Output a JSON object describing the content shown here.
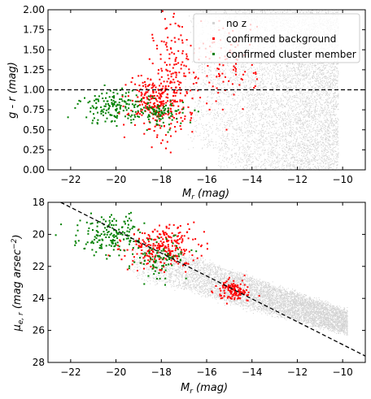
{
  "chart_data": [
    {
      "type": "scatter",
      "xlabel": "M_r (mag)",
      "ylabel": "g - r (mag)",
      "xlim": [
        -23,
        -9
      ],
      "ylim": [
        0,
        2
      ],
      "xticks": [
        -22,
        -20,
        -18,
        -16,
        -14,
        -12,
        -10
      ],
      "yticks": [
        0.0,
        0.25,
        0.5,
        0.75,
        1.0,
        1.25,
        1.5,
        1.75,
        2.0
      ],
      "xtick_labels": [
        "−22",
        "−20",
        "−18",
        "−16",
        "−14",
        "−12",
        "−10"
      ],
      "ytick_labels": [
        "0.00",
        "0.25",
        "0.50",
        "0.75",
        "1.00",
        "1.25",
        "1.50",
        "1.75",
        "2.00"
      ],
      "hline": {
        "y": 1.0,
        "style": "dashed",
        "color": "#000000"
      },
      "legend": {
        "placement": "top-right",
        "entries": [
          "no z",
          "confirmed background",
          "confirmed cluster member"
        ]
      },
      "series": [
        {
          "name": "no z",
          "color": "#d3d3d3",
          "region": {
            "x": [
              -17,
              -10.2
            ],
            "y": [
              0.0,
              2.0
            ]
          }
        },
        {
          "name": "confirmed background",
          "color": "#ff0000",
          "clusters": [
            {
              "x": -18.2,
              "y": 0.85,
              "sx": 0.6,
              "sy": 0.18
            },
            {
              "x": -17.3,
              "y": 1.3,
              "sx": 0.5,
              "sy": 0.35
            },
            {
              "x": -15.0,
              "y": 1.3,
              "sx": 0.6,
              "sy": 0.3
            }
          ]
        },
        {
          "name": "confirmed cluster member",
          "color": "#008000",
          "clusters": [
            {
              "x": -20.0,
              "y": 0.78,
              "sx": 0.8,
              "sy": 0.1
            },
            {
              "x": -18.0,
              "y": 0.7,
              "sx": 0.5,
              "sy": 0.08
            }
          ]
        }
      ]
    },
    {
      "type": "scatter",
      "xlabel": "M_r (mag)",
      "ylabel": "μ_e,r (mag arsec^-2)",
      "xlim": [
        -23,
        -9
      ],
      "ylim": [
        28,
        18
      ],
      "xticks": [
        -22,
        -20,
        -18,
        -16,
        -14,
        -12,
        -10
      ],
      "yticks": [
        18,
        20,
        22,
        24,
        26,
        28
      ],
      "xtick_labels": [
        "−22",
        "−20",
        "−18",
        "−16",
        "−14",
        "−12",
        "−10"
      ],
      "ytick_labels": [
        "18",
        "20",
        "22",
        "24",
        "26",
        "28"
      ],
      "dashed_line": {
        "x": [
          -23,
          -9
        ],
        "y": [
          17.6,
          27.6
        ],
        "color": "#000000"
      },
      "series": [
        {
          "name": "no z",
          "color": "#d3d3d3",
          "band": {
            "x": [
              -19.5,
              -9.8
            ],
            "y_top_start": 20.0,
            "y_top_end": 24.8,
            "y_bot_start": 22.5,
            "y_bot_end": 26.2
          }
        },
        {
          "name": "confirmed background",
          "color": "#ff0000",
          "clusters": [
            {
              "x": -18.0,
              "y": 20.8,
              "sx": 0.8,
              "sy": 0.7
            },
            {
              "x": -14.8,
              "y": 23.5,
              "sx": 0.4,
              "sy": 0.3
            }
          ]
        },
        {
          "name": "confirmed cluster member",
          "color": "#008000",
          "clusters": [
            {
              "x": -20.2,
              "y": 20.0,
              "sx": 0.7,
              "sy": 0.6
            },
            {
              "x": -18.0,
              "y": 21.5,
              "sx": 0.6,
              "sy": 0.6
            }
          ]
        }
      ]
    }
  ],
  "labels": {
    "top_xlabel_main": "M",
    "top_xlabel_sub": "r",
    "top_xlabel_unit": " (mag)",
    "top_ylabel": "g - r (mag)",
    "bot_xlabel_main": "M",
    "bot_xlabel_sub": "r",
    "bot_xlabel_unit": "  (mag)",
    "bot_ylabel_mu": "μ",
    "bot_ylabel_sub": "e, r",
    "bot_ylabel_unit": "  (mag arsec",
    "bot_ylabel_sup": "−2",
    "bot_ylabel_close": ")"
  }
}
